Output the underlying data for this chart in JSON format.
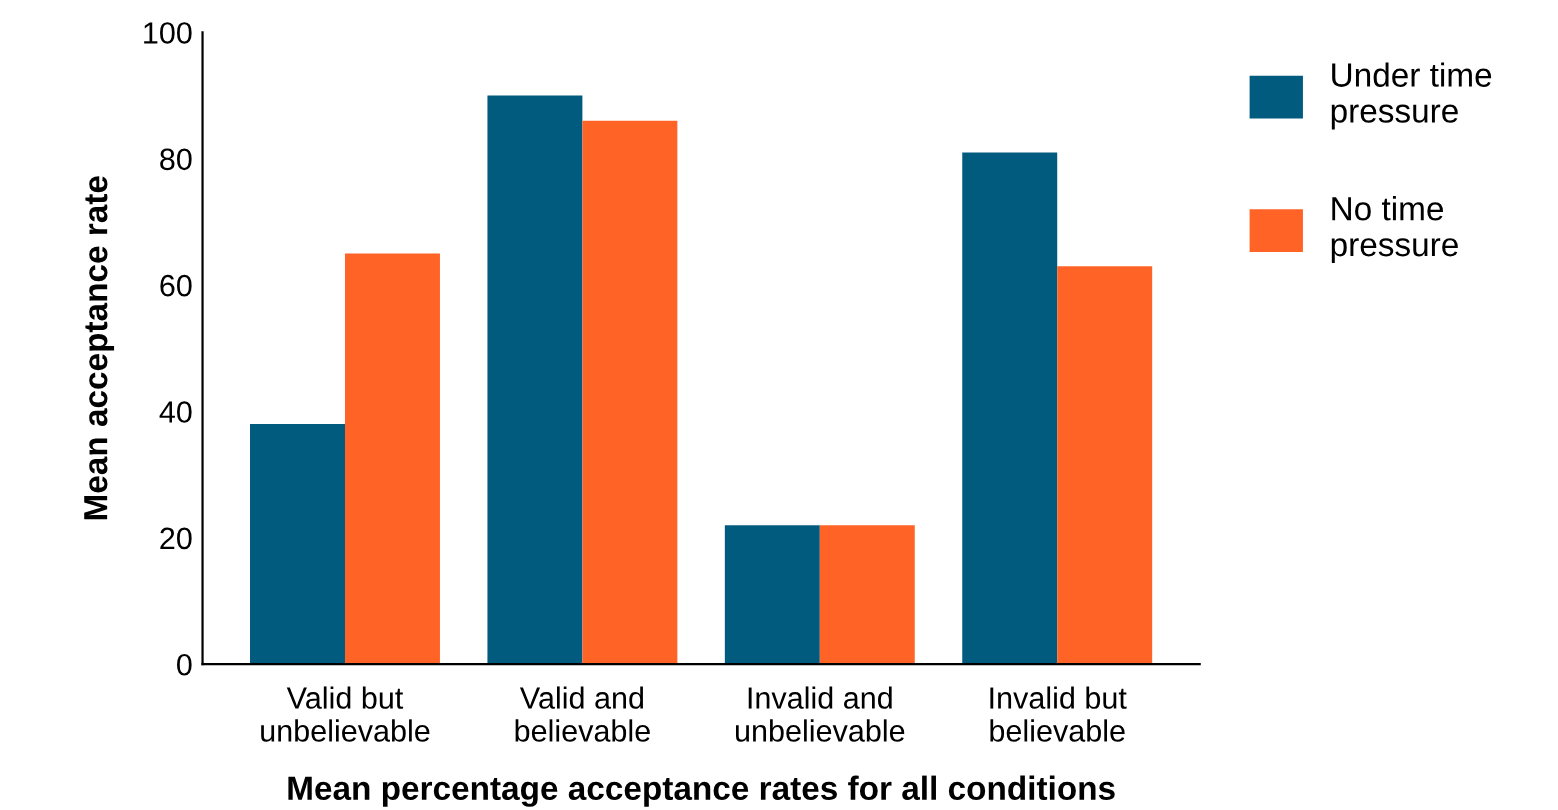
{
  "chart_data": {
    "type": "bar",
    "xlabel": "Mean percentage acceptance rates for all conditions",
    "ylabel": "Mean acceptance rate",
    "categories": [
      "Valid but\nunbelievable",
      "Valid and\nbelievable",
      "Invalid and\nunbelievable",
      "Invalid but\nbelievable"
    ],
    "series": [
      {
        "name": "Under time\npressure",
        "color": "#005b7f",
        "values": [
          38,
          90,
          22,
          81
        ]
      },
      {
        "name": "No time\npressure",
        "color": "#ff6326",
        "values": [
          65,
          86,
          22,
          63
        ]
      }
    ],
    "ylim": [
      0,
      100
    ],
    "yticks": [
      0,
      20,
      40,
      60,
      80,
      100
    ],
    "grid": false,
    "legend": "right"
  }
}
